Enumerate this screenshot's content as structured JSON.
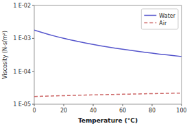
{
  "chart_data": {
    "type": "line",
    "xlabel": "Temperature (°C)",
    "ylabel": "Viscosity (N-s/m²)",
    "x": [
      0,
      5,
      10,
      15,
      20,
      25,
      30,
      35,
      40,
      45,
      50,
      55,
      60,
      65,
      70,
      75,
      80,
      85,
      90,
      95,
      100
    ],
    "series": [
      {
        "name": "Water",
        "color": "#5555cc",
        "line_style": "solid",
        "values": [
          0.001787,
          0.001519,
          0.001307,
          0.001138,
          0.001002,
          0.00089,
          0.000798,
          0.000719,
          0.000653,
          0.000596,
          0.000547,
          0.000504,
          0.000467,
          0.000434,
          0.000404,
          0.000378,
          0.000355,
          0.000333,
          0.000315,
          0.000298,
          0.000282
        ]
      },
      {
        "name": "Air",
        "color": "#cc6666",
        "line_style": "dashed",
        "values": [
          1.716e-05,
          1.741e-05,
          1.767e-05,
          1.793e-05,
          1.819e-05,
          1.845e-05,
          1.869e-05,
          1.893e-05,
          1.918e-05,
          1.941e-05,
          1.963e-05,
          1.985e-05,
          2.008e-05,
          2.03e-05,
          2.052e-05,
          2.074e-05,
          2.096e-05,
          2.117e-05,
          2.138e-05,
          2.159e-05,
          2.181e-05
        ]
      }
    ],
    "log": "y",
    "xlim": [
      0,
      100
    ],
    "ylim": [
      1e-05,
      0.01
    ],
    "xticks": [
      0,
      20,
      40,
      60,
      80,
      100
    ],
    "yticks": [
      {
        "value": 1e-05,
        "label": "1 E-05"
      },
      {
        "value": 0.0001,
        "label": "1 E-04"
      },
      {
        "value": 0.001,
        "label": "1 E-03"
      },
      {
        "value": 0.01,
        "label": "1 E-02"
      }
    ],
    "grid": false,
    "legend": "upper right"
  }
}
